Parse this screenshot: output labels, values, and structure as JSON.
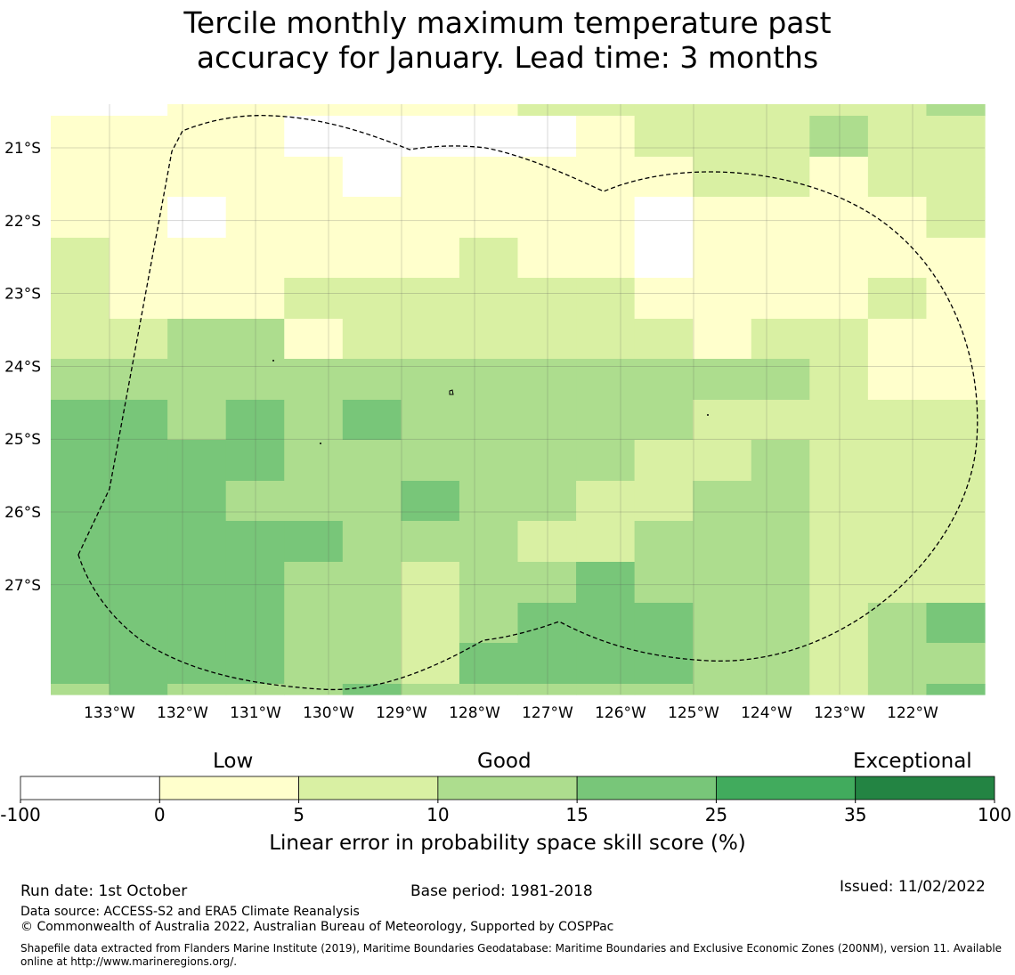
{
  "title_line1": "Tercile monthly maximum temperature past",
  "title_line2": "accuracy for January. Lead time: 3 months",
  "chart_data": {
    "type": "heatmap",
    "title": "Tercile monthly maximum temperature past accuracy for January. Lead time: 3 months",
    "lon_range": [
      -133.8,
      -121.0
    ],
    "lat_range": [
      -20.4,
      -28.5
    ],
    "cell_size_deg": [
      0.83,
      0.55
    ],
    "x_ticks": [
      "133°W",
      "132°W",
      "131°W",
      "130°W",
      "129°W",
      "128°W",
      "127°W",
      "126°W",
      "125°W",
      "124°W",
      "123°W",
      "122°W"
    ],
    "x_tick_values": [
      -133,
      -132,
      -131,
      -130,
      -129,
      -128,
      -127,
      -126,
      -125,
      -124,
      -123,
      -122
    ],
    "y_ticks": [
      "21°S",
      "22°S",
      "23°S",
      "24°S",
      "25°S",
      "26°S",
      "27°S"
    ],
    "y_tick_values": [
      -21,
      -22,
      -23,
      -24,
      -25,
      -26,
      -27
    ],
    "skill_category_grid": [
      [
        0,
        0,
        1,
        1,
        1,
        1,
        1,
        1,
        2,
        2,
        2,
        2,
        2,
        2,
        2,
        3
      ],
      [
        1,
        1,
        1,
        1,
        0,
        0,
        0,
        0,
        0,
        1,
        2,
        2,
        2,
        3,
        2,
        2
      ],
      [
        1,
        1,
        1,
        1,
        1,
        0,
        1,
        1,
        1,
        1,
        1,
        2,
        2,
        1,
        2,
        2
      ],
      [
        1,
        1,
        0,
        1,
        1,
        1,
        1,
        1,
        1,
        1,
        0,
        1,
        1,
        1,
        1,
        2
      ],
      [
        2,
        1,
        1,
        1,
        1,
        1,
        1,
        2,
        1,
        1,
        0,
        1,
        1,
        1,
        1,
        1
      ],
      [
        2,
        1,
        1,
        1,
        2,
        2,
        2,
        2,
        2,
        2,
        1,
        1,
        1,
        1,
        2,
        1
      ],
      [
        2,
        2,
        3,
        3,
        1,
        2,
        2,
        2,
        2,
        2,
        2,
        1,
        2,
        2,
        1,
        1
      ],
      [
        3,
        3,
        3,
        3,
        3,
        3,
        3,
        3,
        3,
        3,
        3,
        3,
        3,
        2,
        1,
        1
      ],
      [
        4,
        4,
        3,
        4,
        3,
        4,
        3,
        3,
        3,
        3,
        3,
        2,
        2,
        2,
        2,
        2
      ],
      [
        4,
        4,
        4,
        4,
        3,
        3,
        3,
        3,
        3,
        3,
        2,
        2,
        3,
        2,
        2,
        2
      ],
      [
        4,
        4,
        4,
        3,
        3,
        3,
        4,
        3,
        3,
        2,
        2,
        3,
        3,
        2,
        2,
        2
      ],
      [
        4,
        4,
        4,
        4,
        4,
        3,
        3,
        3,
        2,
        2,
        3,
        3,
        3,
        2,
        2,
        2
      ],
      [
        4,
        4,
        4,
        4,
        3,
        3,
        2,
        3,
        3,
        4,
        3,
        3,
        3,
        2,
        2,
        2
      ],
      [
        4,
        4,
        4,
        4,
        3,
        3,
        2,
        3,
        4,
        4,
        4,
        3,
        3,
        2,
        3,
        4
      ],
      [
        4,
        4,
        4,
        4,
        3,
        3,
        2,
        4,
        4,
        4,
        4,
        3,
        3,
        2,
        3,
        3
      ],
      [
        3,
        4,
        3,
        3,
        3,
        4,
        3,
        3,
        3,
        3,
        3,
        3,
        3,
        2,
        3,
        4
      ]
    ],
    "eez_boundary": "dashed black outline of Exclusive Economic Zone (Pitcairn Islands)",
    "colorbar": {
      "boundaries": [
        "-100",
        "0",
        "5",
        "10",
        "15",
        "25",
        "35",
        "100"
      ],
      "colors": [
        "#ffffff",
        "#ffffcc",
        "#d9f0a3",
        "#addd8e",
        "#78c679",
        "#41ab5d",
        "#238443"
      ],
      "categories": [
        "Low",
        "Good",
        "Exceptional"
      ],
      "label": "Linear error in probability space skill score (%)"
    }
  },
  "footer": {
    "run_date": "Run date: 1st October",
    "base_period": "Base period: 1981-2018",
    "issued": "Issued: 11/02/2022",
    "data_source": "Data source: ACCESS-S2 and ERA5 Climate Reanalysis",
    "copyright": "© Commonwealth of Australia 2022, Australian Bureau of Meteorology, Supported by COSPPac",
    "shapefile_line1": "Shapefile data extracted from Flanders Marine Institute (2019), Maritime Boundaries Geodatabase: Maritime Boundaries and Exclusive Economic Zones (200NM), version 11. Available",
    "shapefile_line2": "online at http://www.marineregions.org/."
  }
}
